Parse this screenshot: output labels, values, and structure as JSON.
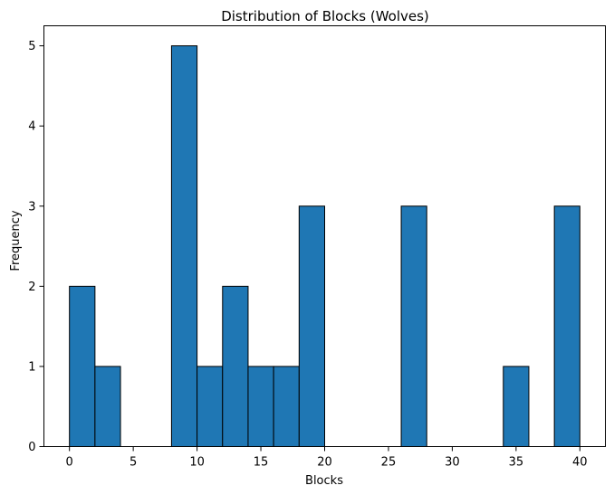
{
  "chart_data": {
    "type": "bar",
    "title": "Distribution of Blocks (Wolves)",
    "xlabel": "Blocks",
    "ylabel": "Frequency",
    "bin_width": 2,
    "bin_starts": [
      0,
      2,
      4,
      6,
      8,
      10,
      12,
      14,
      16,
      18,
      20,
      22,
      24,
      26,
      28,
      30,
      32,
      34,
      36,
      38
    ],
    "values": [
      2,
      1,
      0,
      0,
      5,
      1,
      2,
      1,
      1,
      3,
      0,
      0,
      0,
      3,
      0,
      0,
      0,
      1,
      0,
      3
    ],
    "xlim": [
      -2,
      42
    ],
    "ylim": [
      0,
      5.25
    ],
    "xticks": [
      0,
      5,
      10,
      15,
      20,
      25,
      30,
      35,
      40
    ],
    "yticks": [
      0,
      1,
      2,
      3,
      4,
      5
    ],
    "bar_color": "#1f77b4",
    "edge_color": "#000000",
    "grid": false
  }
}
